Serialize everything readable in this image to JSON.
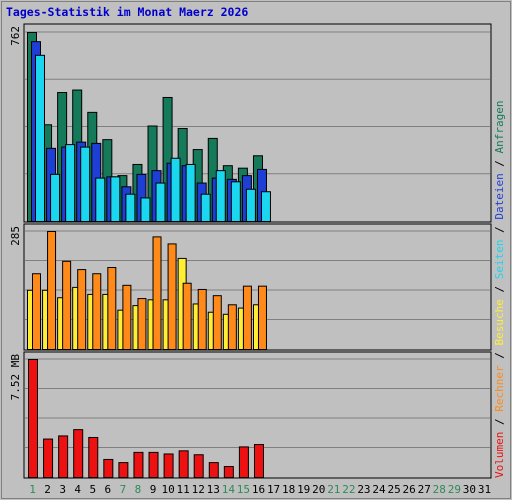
{
  "chart_data": {
    "type": "bar",
    "title": "Tages-Statistik im Monat Maerz 2026",
    "categories": [
      "1",
      "2",
      "3",
      "4",
      "5",
      "6",
      "7",
      "8",
      "9",
      "10",
      "11",
      "12",
      "13",
      "14",
      "15",
      "16",
      "17",
      "18",
      "19",
      "20",
      "21",
      "22",
      "23",
      "24",
      "25",
      "26",
      "27",
      "28",
      "29",
      "30",
      "31"
    ],
    "weekend_days": [
      "1",
      "7",
      "8",
      "14",
      "15",
      "21",
      "22",
      "28",
      "29"
    ],
    "colors": {
      "title": "#0000cc",
      "background": "#c0c0c0",
      "grid": "#808080",
      "weekday_label": "#000000",
      "weekend_label": "#2e8b57",
      "Anfragen": "#157a5a",
      "Dateien": "#1e3fd6",
      "Seiten": "#1ad6ee",
      "Besuche": "#ffee33",
      "Rechner": "#ff8a1a",
      "Volumen": "#ee1111"
    },
    "panels": [
      {
        "ylabel_max": "762",
        "ylim": [
          0,
          762
        ],
        "series": [
          {
            "name": "Anfragen",
            "values": [
              762,
              390,
              520,
              530,
              440,
              330,
              185,
              230,
              385,
              500,
              375,
              290,
              335,
              225,
              215,
              265,
              0,
              0,
              0,
              0,
              0,
              0,
              0,
              0,
              0,
              0,
              0,
              0,
              0,
              0,
              0
            ]
          },
          {
            "name": "Dateien",
            "values": [
              725,
              295,
              300,
              320,
              315,
              180,
              140,
              190,
              205,
              235,
              225,
              155,
              175,
              170,
              185,
              210,
              0,
              0,
              0,
              0,
              0,
              0,
              0,
              0,
              0,
              0,
              0,
              0,
              0,
              0,
              0
            ]
          },
          {
            "name": "Seiten",
            "values": [
              670,
              190,
              310,
              300,
              175,
              180,
              110,
              95,
              155,
              255,
              230,
              110,
              205,
              160,
              130,
              120,
              0,
              0,
              0,
              0,
              0,
              0,
              0,
              0,
              0,
              0,
              0,
              0,
              0,
              0,
              0
            ]
          }
        ]
      },
      {
        "ylabel_max": "285",
        "ylim": [
          0,
          285
        ],
        "series": [
          {
            "name": "Besuche",
            "values": [
              143,
              143,
              125,
              150,
              133,
              133,
              95,
              106,
              120,
              120,
              220,
              110,
              90,
              85,
              100,
              108,
              0,
              0,
              0,
              0,
              0,
              0,
              0,
              0,
              0,
              0,
              0,
              0,
              0,
              0,
              0
            ]
          },
          {
            "name": "Rechner",
            "values": [
              183,
              285,
              213,
              193,
              183,
              198,
              155,
              123,
              272,
              255,
              160,
              145,
              130,
              108,
              153,
              153,
              0,
              0,
              0,
              0,
              0,
              0,
              0,
              0,
              0,
              0,
              0,
              0,
              0,
              0,
              0
            ]
          }
        ]
      },
      {
        "ylabel_max": "7.52 MB",
        "ylim": [
          0,
          7.52
        ],
        "series": [
          {
            "name": "Volumen",
            "values": [
              7.52,
              2.45,
              2.65,
              3.05,
              2.55,
              1.15,
              0.95,
              1.6,
              1.6,
              1.5,
              1.7,
              1.45,
              0.95,
              0.7,
              1.95,
              2.1,
              0,
              0,
              0,
              0,
              0,
              0,
              0,
              0,
              0,
              0,
              0,
              0,
              0,
              0,
              0
            ]
          }
        ]
      }
    ],
    "legend": [
      {
        "name": "Volumen"
      },
      {
        "sep": "/"
      },
      {
        "name": "Rechner"
      },
      {
        "sep": "/"
      },
      {
        "name": "Besuche"
      },
      {
        "sep": "/"
      },
      {
        "name": "Seiten"
      },
      {
        "sep": "/"
      },
      {
        "name": "Dateien"
      },
      {
        "sep": "/"
      },
      {
        "name": "Anfragen"
      }
    ]
  }
}
